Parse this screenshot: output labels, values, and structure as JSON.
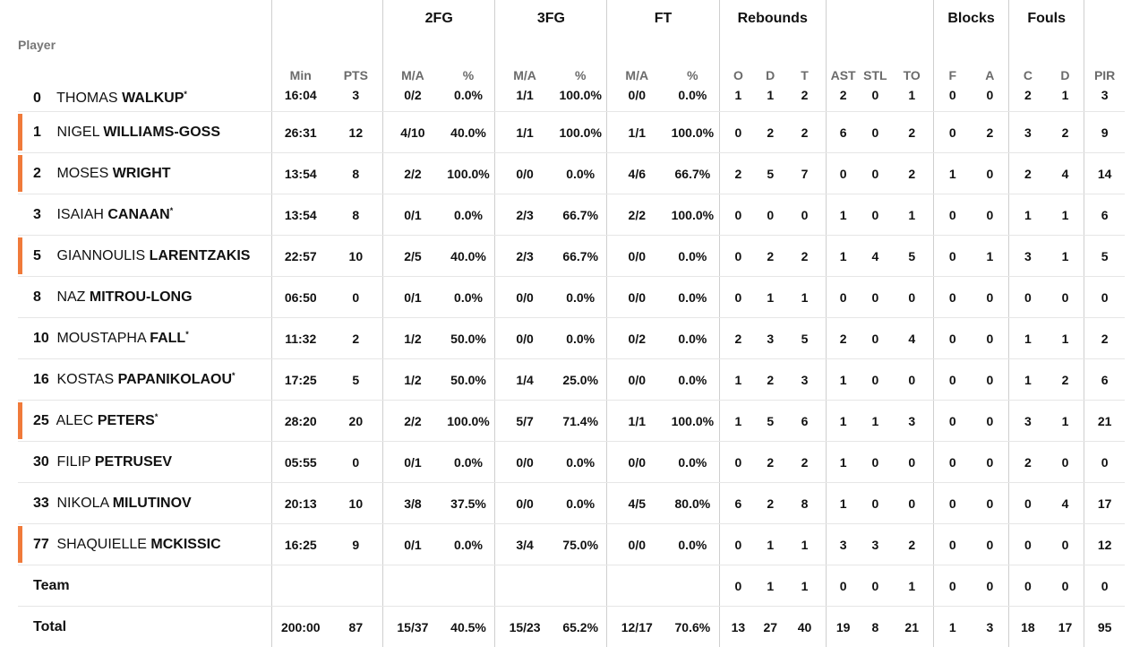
{
  "groups": {
    "fg2": "2FG",
    "fg3": "3FG",
    "ft": "FT",
    "rebounds": "Rebounds",
    "blocks": "Blocks",
    "fouls": "Fouls"
  },
  "columns": {
    "player": "Player",
    "min": "Min",
    "pts": "PTS",
    "fg2_ma": "M/A",
    "fg2_pct": "%",
    "fg3_ma": "M/A",
    "fg3_pct": "%",
    "ft_ma": "M/A",
    "ft_pct": "%",
    "reb_o": "O",
    "reb_d": "D",
    "reb_t": "T",
    "ast": "AST",
    "stl": "STL",
    "to": "TO",
    "blk_f": "F",
    "blk_a": "A",
    "foul_c": "C",
    "foul_d": "D",
    "pir": "PIR"
  },
  "colors": {
    "highlight": "#f07a3a"
  },
  "players": [
    {
      "num": "0",
      "first": "THOMAS",
      "last": "WALKUP",
      "star": "*",
      "marked": false,
      "min": "16:04",
      "pts": "3",
      "fg2_ma": "0/2",
      "fg2_pct": "0.0%",
      "fg3_ma": "1/1",
      "fg3_pct": "100.0%",
      "ft_ma": "0/0",
      "ft_pct": "0.0%",
      "reb_o": "1",
      "reb_d": "1",
      "reb_t": "2",
      "ast": "2",
      "stl": "0",
      "to": "1",
      "blk_f": "0",
      "blk_a": "0",
      "foul_c": "2",
      "foul_d": "1",
      "pir": "3"
    },
    {
      "num": "1",
      "first": "NIGEL",
      "last": "WILLIAMS-GOSS",
      "star": "",
      "marked": true,
      "min": "26:31",
      "pts": "12",
      "fg2_ma": "4/10",
      "fg2_pct": "40.0%",
      "fg3_ma": "1/1",
      "fg3_pct": "100.0%",
      "ft_ma": "1/1",
      "ft_pct": "100.0%",
      "reb_o": "0",
      "reb_d": "2",
      "reb_t": "2",
      "ast": "6",
      "stl": "0",
      "to": "2",
      "blk_f": "0",
      "blk_a": "2",
      "foul_c": "3",
      "foul_d": "2",
      "pir": "9"
    },
    {
      "num": "2",
      "first": "MOSES",
      "last": "WRIGHT",
      "star": "",
      "marked": true,
      "min": "13:54",
      "pts": "8",
      "fg2_ma": "2/2",
      "fg2_pct": "100.0%",
      "fg3_ma": "0/0",
      "fg3_pct": "0.0%",
      "ft_ma": "4/6",
      "ft_pct": "66.7%",
      "reb_o": "2",
      "reb_d": "5",
      "reb_t": "7",
      "ast": "0",
      "stl": "0",
      "to": "2",
      "blk_f": "1",
      "blk_a": "0",
      "foul_c": "2",
      "foul_d": "4",
      "pir": "14"
    },
    {
      "num": "3",
      "first": "ISAIAH",
      "last": "CANAAN",
      "star": "*",
      "marked": false,
      "min": "13:54",
      "pts": "8",
      "fg2_ma": "0/1",
      "fg2_pct": "0.0%",
      "fg3_ma": "2/3",
      "fg3_pct": "66.7%",
      "ft_ma": "2/2",
      "ft_pct": "100.0%",
      "reb_o": "0",
      "reb_d": "0",
      "reb_t": "0",
      "ast": "1",
      "stl": "0",
      "to": "1",
      "blk_f": "0",
      "blk_a": "0",
      "foul_c": "1",
      "foul_d": "1",
      "pir": "6"
    },
    {
      "num": "5",
      "first": "GIANNOULIS",
      "last": "LARENTZAKIS",
      "star": "",
      "marked": true,
      "min": "22:57",
      "pts": "10",
      "fg2_ma": "2/5",
      "fg2_pct": "40.0%",
      "fg3_ma": "2/3",
      "fg3_pct": "66.7%",
      "ft_ma": "0/0",
      "ft_pct": "0.0%",
      "reb_o": "0",
      "reb_d": "2",
      "reb_t": "2",
      "ast": "1",
      "stl": "4",
      "to": "5",
      "blk_f": "0",
      "blk_a": "1",
      "foul_c": "3",
      "foul_d": "1",
      "pir": "5"
    },
    {
      "num": "8",
      "first": "NAZ",
      "last": "MITROU-LONG",
      "star": "",
      "marked": false,
      "min": "06:50",
      "pts": "0",
      "fg2_ma": "0/1",
      "fg2_pct": "0.0%",
      "fg3_ma": "0/0",
      "fg3_pct": "0.0%",
      "ft_ma": "0/0",
      "ft_pct": "0.0%",
      "reb_o": "0",
      "reb_d": "1",
      "reb_t": "1",
      "ast": "0",
      "stl": "0",
      "to": "0",
      "blk_f": "0",
      "blk_a": "0",
      "foul_c": "0",
      "foul_d": "0",
      "pir": "0"
    },
    {
      "num": "10",
      "first": "MOUSTAPHA",
      "last": "FALL",
      "star": "*",
      "marked": false,
      "min": "11:32",
      "pts": "2",
      "fg2_ma": "1/2",
      "fg2_pct": "50.0%",
      "fg3_ma": "0/0",
      "fg3_pct": "0.0%",
      "ft_ma": "0/2",
      "ft_pct": "0.0%",
      "reb_o": "2",
      "reb_d": "3",
      "reb_t": "5",
      "ast": "2",
      "stl": "0",
      "to": "4",
      "blk_f": "0",
      "blk_a": "0",
      "foul_c": "1",
      "foul_d": "1",
      "pir": "2"
    },
    {
      "num": "16",
      "first": "KOSTAS",
      "last": "PAPANIKOLAOU",
      "star": "*",
      "marked": false,
      "min": "17:25",
      "pts": "5",
      "fg2_ma": "1/2",
      "fg2_pct": "50.0%",
      "fg3_ma": "1/4",
      "fg3_pct": "25.0%",
      "ft_ma": "0/0",
      "ft_pct": "0.0%",
      "reb_o": "1",
      "reb_d": "2",
      "reb_t": "3",
      "ast": "1",
      "stl": "0",
      "to": "0",
      "blk_f": "0",
      "blk_a": "0",
      "foul_c": "1",
      "foul_d": "2",
      "pir": "6"
    },
    {
      "num": "25",
      "first": "ALEC",
      "last": "PETERS",
      "star": "*",
      "marked": true,
      "min": "28:20",
      "pts": "20",
      "fg2_ma": "2/2",
      "fg2_pct": "100.0%",
      "fg3_ma": "5/7",
      "fg3_pct": "71.4%",
      "ft_ma": "1/1",
      "ft_pct": "100.0%",
      "reb_o": "1",
      "reb_d": "5",
      "reb_t": "6",
      "ast": "1",
      "stl": "1",
      "to": "3",
      "blk_f": "0",
      "blk_a": "0",
      "foul_c": "3",
      "foul_d": "1",
      "pir": "21"
    },
    {
      "num": "30",
      "first": "FILIP",
      "last": "PETRUSEV",
      "star": "",
      "marked": false,
      "min": "05:55",
      "pts": "0",
      "fg2_ma": "0/1",
      "fg2_pct": "0.0%",
      "fg3_ma": "0/0",
      "fg3_pct": "0.0%",
      "ft_ma": "0/0",
      "ft_pct": "0.0%",
      "reb_o": "0",
      "reb_d": "2",
      "reb_t": "2",
      "ast": "1",
      "stl": "0",
      "to": "0",
      "blk_f": "0",
      "blk_a": "0",
      "foul_c": "2",
      "foul_d": "0",
      "pir": "0"
    },
    {
      "num": "33",
      "first": "NIKOLA",
      "last": "MILUTINOV",
      "star": "",
      "marked": false,
      "min": "20:13",
      "pts": "10",
      "fg2_ma": "3/8",
      "fg2_pct": "37.5%",
      "fg3_ma": "0/0",
      "fg3_pct": "0.0%",
      "ft_ma": "4/5",
      "ft_pct": "80.0%",
      "reb_o": "6",
      "reb_d": "2",
      "reb_t": "8",
      "ast": "1",
      "stl": "0",
      "to": "0",
      "blk_f": "0",
      "blk_a": "0",
      "foul_c": "0",
      "foul_d": "4",
      "pir": "17"
    },
    {
      "num": "77",
      "first": "SHAQUIELLE",
      "last": "MCKISSIC",
      "star": "",
      "marked": true,
      "min": "16:25",
      "pts": "9",
      "fg2_ma": "0/1",
      "fg2_pct": "0.0%",
      "fg3_ma": "3/4",
      "fg3_pct": "75.0%",
      "ft_ma": "0/0",
      "ft_pct": "0.0%",
      "reb_o": "0",
      "reb_d": "1",
      "reb_t": "1",
      "ast": "3",
      "stl": "3",
      "to": "2",
      "blk_f": "0",
      "blk_a": "0",
      "foul_c": "0",
      "foul_d": "0",
      "pir": "12"
    }
  ],
  "team": {
    "label": "Team",
    "min": "",
    "pts": "",
    "fg2_ma": "",
    "fg2_pct": "",
    "fg3_ma": "",
    "fg3_pct": "",
    "ft_ma": "",
    "ft_pct": "",
    "reb_o": "0",
    "reb_d": "1",
    "reb_t": "1",
    "ast": "0",
    "stl": "0",
    "to": "1",
    "blk_f": "0",
    "blk_a": "0",
    "foul_c": "0",
    "foul_d": "0",
    "pir": "0"
  },
  "total": {
    "label": "Total",
    "min": "200:00",
    "pts": "87",
    "fg2_ma": "15/37",
    "fg2_pct": "40.5%",
    "fg3_ma": "15/23",
    "fg3_pct": "65.2%",
    "ft_ma": "12/17",
    "ft_pct": "70.6%",
    "reb_o": "13",
    "reb_d": "27",
    "reb_t": "40",
    "ast": "19",
    "stl": "8",
    "to": "21",
    "blk_f": "1",
    "blk_a": "3",
    "foul_c": "18",
    "foul_d": "17",
    "pir": "95"
  }
}
